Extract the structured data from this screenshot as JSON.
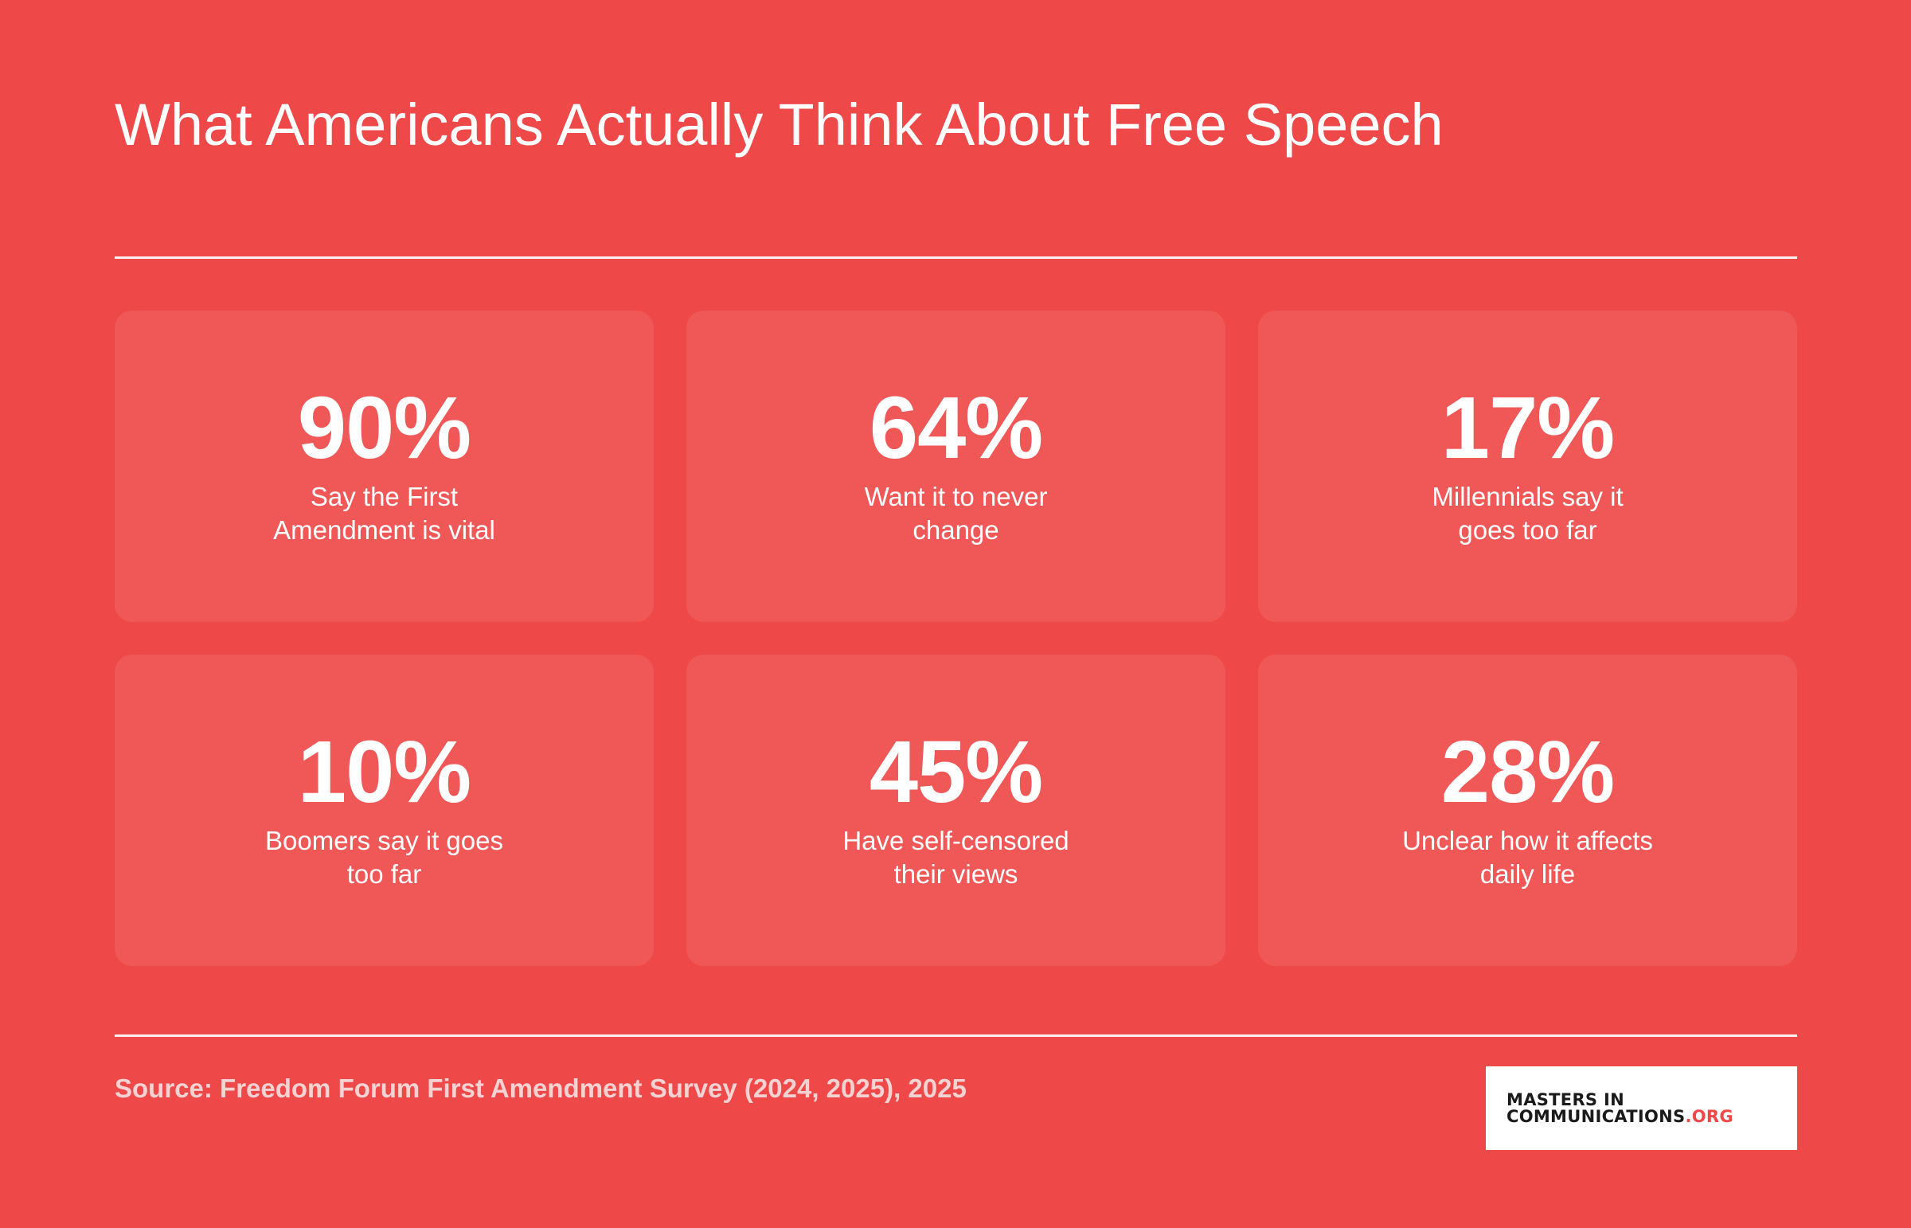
{
  "title": "What Americans Actually Think About Free Speech",
  "stats": [
    {
      "value": "90%",
      "label_line1": "Say the First",
      "label_line2": "Amendment is vital"
    },
    {
      "value": "64%",
      "label_line1": "Want it to never",
      "label_line2": "change"
    },
    {
      "value": "17%",
      "label_line1": "Millennials say it",
      "label_line2": "goes too far"
    },
    {
      "value": "10%",
      "label_line1": "Boomers say it goes",
      "label_line2": "too far"
    },
    {
      "value": "45%",
      "label_line1": "Have self-censored",
      "label_line2": "their views"
    },
    {
      "value": "28%",
      "label_line1": "Unclear how it affects",
      "label_line2": "daily life"
    }
  ],
  "source": "Source: Freedom Forum First Amendment Survey (2024, 2025), 2025",
  "logo": {
    "line1": "MASTERS IN",
    "line2_main": "COMMUNICATIONS",
    "line2_accent": ".ORG"
  },
  "colors": {
    "background": "#ef4848",
    "card": "#f05757",
    "text": "#ffffff",
    "source_text": "#f7d2d2",
    "logo_accent": "#ef4848"
  }
}
